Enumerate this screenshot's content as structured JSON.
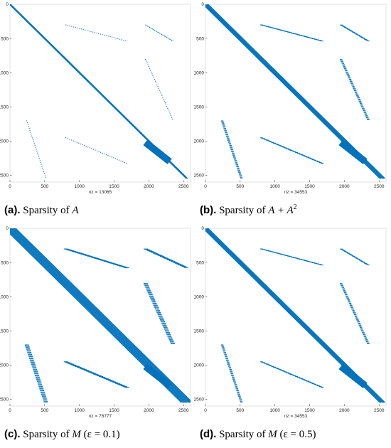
{
  "chart_data": [
    {
      "type": "spy",
      "panel_id": "a",
      "caption": {
        "label": "(a).",
        "text_prefix": "Sparsity of ",
        "math": "A",
        "math_sup": "",
        "text_suffix": ""
      },
      "nz_label": "nz = 13065",
      "size": 2550,
      "x_ticks": [
        0,
        500,
        1000,
        1500,
        2000,
        2500
      ],
      "y_ticks": [
        500,
        1000,
        1500,
        2000,
        2500
      ],
      "xlim": [
        0,
        2600
      ],
      "ylim": [
        0,
        2600
      ],
      "diagonal_band": {
        "rows": [
          0,
          2550
        ],
        "width": 35
      },
      "blocks": [
        {
          "rows": [
            300,
            540
          ],
          "cols": [
            800,
            1690
          ],
          "density": 0.9,
          "width": 12
        },
        {
          "rows": [
            300,
            540
          ],
          "cols": [
            1950,
            2350
          ],
          "density": 1.0,
          "width": 12
        },
        {
          "rows": [
            800,
            1700
          ],
          "cols": [
            1950,
            2350
          ],
          "density": 0.8,
          "width": 12
        },
        {
          "rows": [
            1700,
            2550
          ],
          "cols": [
            240,
            520
          ],
          "density": 0.8,
          "width": 12
        },
        {
          "rows": [
            1950,
            2330
          ],
          "cols": [
            800,
            1690
          ],
          "density": 0.8,
          "width": 12
        }
      ],
      "thick_band": {
        "rows": [
          2020,
          2300
        ],
        "cols": [
          1950,
          2300
        ]
      }
    },
    {
      "type": "spy",
      "panel_id": "b",
      "caption": {
        "label": "(b).",
        "text_prefix": "Sparsity of ",
        "math": "A + A",
        "math_sup": "2",
        "text_suffix": ""
      },
      "nz_label": "nz = 34553",
      "size": 2550,
      "x_ticks": [
        0,
        500,
        1000,
        1500,
        2000,
        2500
      ],
      "y_ticks": [
        500,
        1000,
        1500,
        2000,
        2500
      ],
      "xlim": [
        0,
        2600
      ],
      "ylim": [
        0,
        2600
      ],
      "diagonal_band": {
        "rows": [
          0,
          2550
        ],
        "width": 90
      },
      "blocks": [
        {
          "rows": [
            300,
            540
          ],
          "cols": [
            800,
            1690
          ],
          "density": 1.0,
          "width": 30
        },
        {
          "rows": [
            300,
            540
          ],
          "cols": [
            1950,
            2350
          ],
          "density": 1.0,
          "width": 30
        },
        {
          "rows": [
            800,
            1700
          ],
          "cols": [
            1950,
            2350
          ],
          "density": 1.0,
          "width": 30
        },
        {
          "rows": [
            1700,
            2550
          ],
          "cols": [
            240,
            520
          ],
          "density": 1.0,
          "width": 30
        },
        {
          "rows": [
            1950,
            2330
          ],
          "cols": [
            800,
            1690
          ],
          "density": 1.0,
          "width": 30
        }
      ],
      "thick_band": {
        "rows": [
          2020,
          2300
        ],
        "cols": [
          1950,
          2300
        ]
      }
    },
    {
      "type": "spy",
      "panel_id": "c",
      "caption": {
        "label": "(c).",
        "text_prefix": "Sparsity of ",
        "math": "M",
        "math_sup": "",
        "text_suffix": " (ε = 0.1)"
      },
      "nz_label": "nz = 76777",
      "size": 2550,
      "x_ticks": [
        0,
        500,
        1000,
        1500,
        2000,
        2500
      ],
      "y_ticks": [
        500,
        1000,
        1500,
        2000,
        2500
      ],
      "xlim": [
        0,
        2600
      ],
      "ylim": [
        0,
        2600
      ],
      "diagonal_band": {
        "rows": [
          0,
          2550
        ],
        "width": 180
      },
      "blocks": [
        {
          "rows": [
            300,
            580
          ],
          "cols": [
            800,
            1690
          ],
          "density": 1.0,
          "width": 60
        },
        {
          "rows": [
            300,
            580
          ],
          "cols": [
            1950,
            2550
          ],
          "density": 1.0,
          "width": 60
        },
        {
          "rows": [
            800,
            1700
          ],
          "cols": [
            1950,
            2350
          ],
          "density": 1.0,
          "width": 60
        },
        {
          "rows": [
            1700,
            2550
          ],
          "cols": [
            240,
            520
          ],
          "density": 1.0,
          "width": 60
        },
        {
          "rows": [
            1950,
            2330
          ],
          "cols": [
            800,
            1690
          ],
          "density": 1.0,
          "width": 60
        }
      ],
      "thick_band": {
        "rows": [
          2020,
          2300
        ],
        "cols": [
          1950,
          2300
        ]
      }
    },
    {
      "type": "spy",
      "panel_id": "d",
      "caption": {
        "label": "(d).",
        "text_prefix": "Sparsity of ",
        "math": "M",
        "math_sup": "",
        "text_suffix": " (ε = 0.5)"
      },
      "nz_label": "nz = 34553",
      "size": 2550,
      "x_ticks": [
        0,
        500,
        1000,
        1500,
        2000,
        2500
      ],
      "y_ticks": [
        500,
        1000,
        1500,
        2000,
        2500
      ],
      "xlim": [
        0,
        2600
      ],
      "ylim": [
        0,
        2600
      ],
      "diagonal_band": {
        "rows": [
          0,
          2550
        ],
        "width": 90
      },
      "blocks": [
        {
          "rows": [
            300,
            540
          ],
          "cols": [
            800,
            1690
          ],
          "density": 1.0,
          "width": 30
        },
        {
          "rows": [
            300,
            540
          ],
          "cols": [
            1950,
            2350
          ],
          "density": 1.0,
          "width": 30
        },
        {
          "rows": [
            800,
            1700
          ],
          "cols": [
            1950,
            2350
          ],
          "density": 1.0,
          "width": 30
        },
        {
          "rows": [
            1700,
            2550
          ],
          "cols": [
            240,
            520
          ],
          "density": 1.0,
          "width": 30
        },
        {
          "rows": [
            1950,
            2330
          ],
          "cols": [
            800,
            1690
          ],
          "density": 1.0,
          "width": 30
        }
      ],
      "thick_band": {
        "rows": [
          2020,
          2300
        ],
        "cols": [
          1950,
          2300
        ]
      }
    }
  ],
  "colors": {
    "marker": "#0072bd",
    "axis": "#262626",
    "frame": "#d0d0d0"
  }
}
